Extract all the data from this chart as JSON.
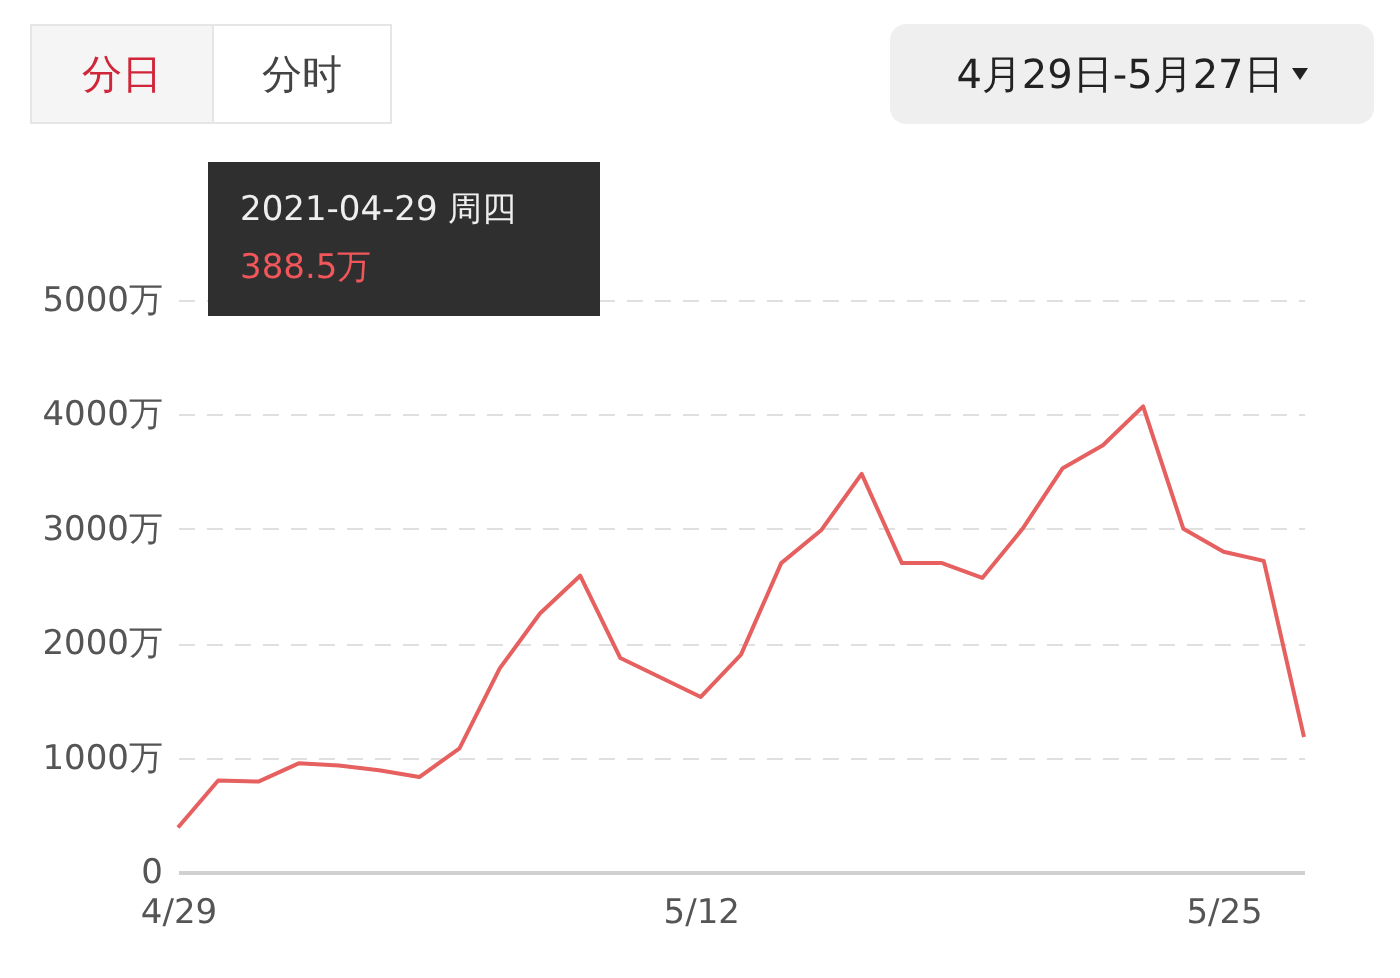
{
  "chart_data": {
    "type": "line",
    "categories": [
      "4/29",
      null,
      null,
      null,
      null,
      null,
      null,
      null,
      null,
      null,
      null,
      null,
      null,
      "5/12",
      null,
      null,
      null,
      null,
      null,
      null,
      null,
      null,
      null,
      null,
      null,
      null,
      "5/25",
      null,
      null
    ],
    "series": [
      {
        "color": "#e5605f",
        "values": [
          388.5,
          800,
          790,
          950,
          930,
          890,
          830,
          1080,
          1780,
          2260,
          2590,
          1870,
          1700,
          1530,
          1900,
          2700,
          2990,
          3480,
          2700,
          2700,
          2570,
          3000,
          3530,
          3730,
          4070,
          3000,
          2800,
          2720,
          1180
        ]
      }
    ],
    "ylim": [
      0,
      5000
    ],
    "yticks": [
      0,
      {
        "value": 1000,
        "label": "1000万"
      },
      {
        "value": 2000,
        "label": "2000万"
      },
      {
        "value": 3000,
        "label": "3000万"
      },
      {
        "value": 4000,
        "label": "4000万"
      },
      {
        "value": 5000,
        "label": "5000万"
      }
    ],
    "grid": "y",
    "marker": "none",
    "line_style": "solid",
    "annotations": [
      "分日",
      "分时",
      "4月29日-5月27日",
      "2021-04-29 周四",
      "388.5万"
    ]
  }
}
